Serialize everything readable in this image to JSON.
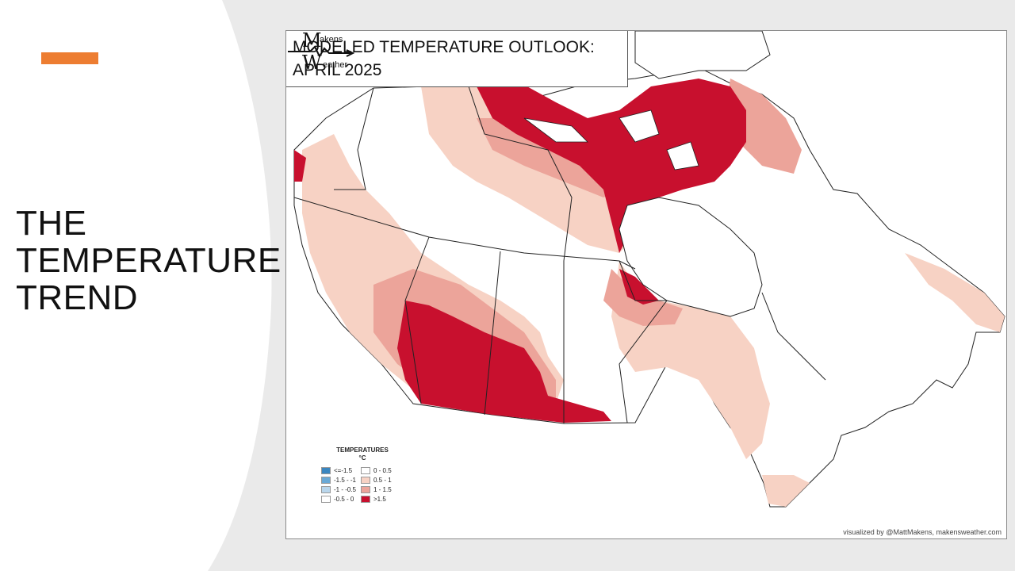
{
  "slide": {
    "title_lines": [
      "THE",
      "TEMPERATURE",
      "TREND"
    ]
  },
  "map": {
    "title_lines": [
      "MODELED TEMPERATURE OUTLOOK:",
      "APRIL 2025"
    ],
    "credit": "visualized by @MattMakens, makensweather.com",
    "logo_text": [
      "akens",
      "eather"
    ],
    "legend": {
      "title_lines": [
        "TEMPERATURES",
        "°C"
      ],
      "items": [
        {
          "label": "<=-1.5",
          "color": "#3a86c0"
        },
        {
          "label": "0 - 0.5",
          "color": "#ffffff"
        },
        {
          "label": "-1.5 - -1",
          "color": "#6aa9d6"
        },
        {
          "label": "0.5 - 1",
          "color": "#f7d2c4"
        },
        {
          "label": "-1 - -0.5",
          "color": "#b9d6ec"
        },
        {
          "label": "1 - 1.5",
          "color": "#eca49a"
        },
        {
          "label": "-0.5 - 0",
          "color": "#ffffff"
        },
        {
          "label": ">1.5",
          "color": "#c8102e"
        }
      ]
    }
  },
  "colors": {
    "accent": "#ed7d31",
    "anomaly_light": "#f7d2c4",
    "anomaly_medium": "#eca49a",
    "anomaly_strong": "#c8102e"
  }
}
